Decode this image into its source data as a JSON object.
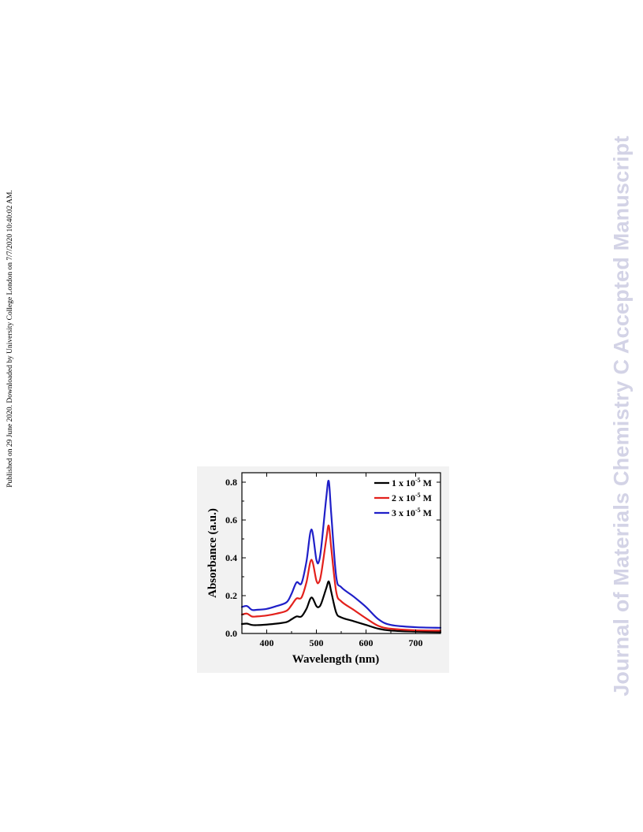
{
  "page": {
    "side_note": "Published on 29 June 2020. Downloaded by University College London on 7/7/2020 10:40:02 AM.",
    "watermark": "Journal of Materials Chemistry C Accepted Manuscript"
  },
  "chart_data": {
    "type": "line",
    "title": "",
    "xlabel": "Wavelength (nm)",
    "ylabel": "Absorbance (a.u.)",
    "xlim": [
      350,
      750
    ],
    "ylim": [
      0,
      0.85
    ],
    "xticks": [
      400,
      500,
      600,
      700
    ],
    "yticks": [
      0.0,
      0.2,
      0.4,
      0.6,
      0.8
    ],
    "xtick_labels": [
      "400",
      "500",
      "600",
      "700"
    ],
    "ytick_labels": [
      "0.0",
      "0.2",
      "0.4",
      "0.6",
      "0.8"
    ],
    "grid": false,
    "legend_position": "top-right",
    "series": [
      {
        "name": "1 x 10-5 M",
        "legend": {
          "prefix": "1 x 10",
          "exp": "-5",
          "suffix": " M"
        },
        "color": "#000000",
        "x": [
          350,
          360,
          370,
          380,
          400,
          420,
          440,
          450,
          460,
          470,
          480,
          490,
          500,
          505,
          510,
          520,
          525,
          530,
          540,
          550,
          575,
          600,
          625,
          650,
          700,
          750
        ],
        "y": [
          0.05,
          0.052,
          0.045,
          0.044,
          0.047,
          0.052,
          0.06,
          0.075,
          0.09,
          0.09,
          0.13,
          0.19,
          0.145,
          0.14,
          0.16,
          0.24,
          0.275,
          0.22,
          0.11,
          0.085,
          0.065,
          0.045,
          0.025,
          0.015,
          0.01,
          0.007
        ]
      },
      {
        "name": "2 x 10-5 M",
        "legend": {
          "prefix": "2 x 10",
          "exp": "-5",
          "suffix": " M"
        },
        "color": "#e3211c",
        "x": [
          350,
          360,
          370,
          380,
          400,
          420,
          440,
          450,
          460,
          470,
          480,
          490,
          500,
          505,
          510,
          520,
          525,
          530,
          540,
          550,
          575,
          600,
          625,
          650,
          700,
          750
        ],
        "y": [
          0.1,
          0.105,
          0.09,
          0.09,
          0.095,
          0.105,
          0.12,
          0.15,
          0.185,
          0.19,
          0.27,
          0.39,
          0.28,
          0.27,
          0.32,
          0.5,
          0.57,
          0.45,
          0.22,
          0.17,
          0.125,
          0.08,
          0.04,
          0.025,
          0.017,
          0.015
        ]
      },
      {
        "name": "3 x 10-5 M",
        "legend": {
          "prefix": "3 x 10",
          "exp": "-5",
          "suffix": " M"
        },
        "color": "#1f1fc8",
        "x": [
          350,
          360,
          370,
          380,
          400,
          420,
          440,
          450,
          460,
          470,
          480,
          490,
          500,
          505,
          510,
          520,
          525,
          530,
          540,
          550,
          575,
          600,
          625,
          650,
          700,
          750
        ],
        "y": [
          0.14,
          0.145,
          0.125,
          0.125,
          0.13,
          0.145,
          0.165,
          0.21,
          0.27,
          0.265,
          0.38,
          0.55,
          0.39,
          0.38,
          0.46,
          0.72,
          0.805,
          0.63,
          0.3,
          0.245,
          0.195,
          0.14,
          0.075,
          0.045,
          0.033,
          0.03
        ]
      }
    ]
  }
}
